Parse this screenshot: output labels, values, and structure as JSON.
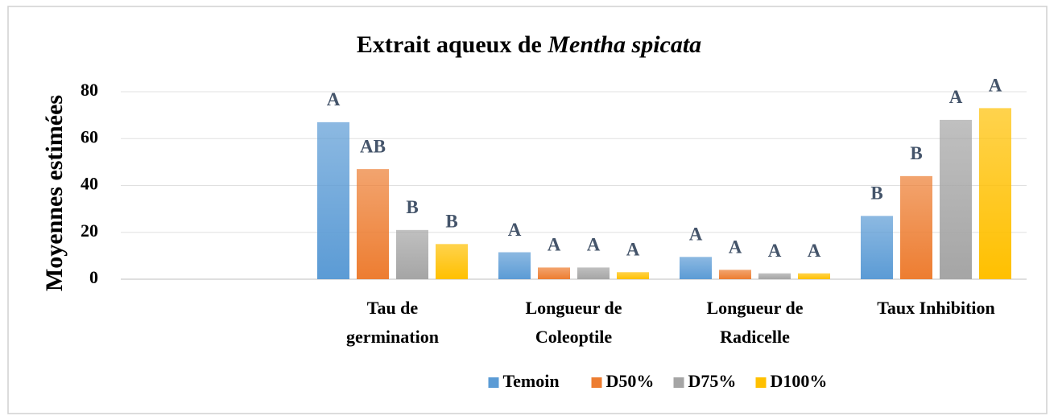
{
  "chart_data": {
    "type": "bar",
    "title": "Extrait aqueux de ",
    "title_species": "Mentha spicata",
    "y_label": "Moyennes estimées",
    "categories": [
      null,
      "Tau de\ngermination",
      "Longueur de\nColeoptile",
      "Longueur de\nRadicelle",
      "Taux Inhibition"
    ],
    "series": [
      {
        "name": "Temoin",
        "color": "#5b9bd5",
        "values": [
          null,
          67,
          11.5,
          9.5,
          27
        ],
        "letters": [
          null,
          "A",
          "A",
          "A",
          "B"
        ]
      },
      {
        "name": "D50%",
        "color": "#ed7d31",
        "values": [
          null,
          47,
          5,
          4,
          44
        ],
        "letters": [
          null,
          "AB",
          "A",
          "A",
          "B"
        ]
      },
      {
        "name": "D75%",
        "color": "#a5a5a5",
        "values": [
          null,
          21,
          5,
          2.5,
          68
        ],
        "letters": [
          null,
          "B",
          "A",
          "A",
          "A"
        ]
      },
      {
        "name": "D100%",
        "color": "#ffc000",
        "values": [
          null,
          15,
          3,
          2.5,
          73
        ],
        "letters": [
          null,
          "B",
          "A",
          "A",
          "A"
        ]
      }
    ],
    "ylim": [
      0,
      80
    ],
    "yticks": [
      0,
      20,
      40,
      60,
      80
    ],
    "grid": true,
    "legend": "bottom"
  }
}
